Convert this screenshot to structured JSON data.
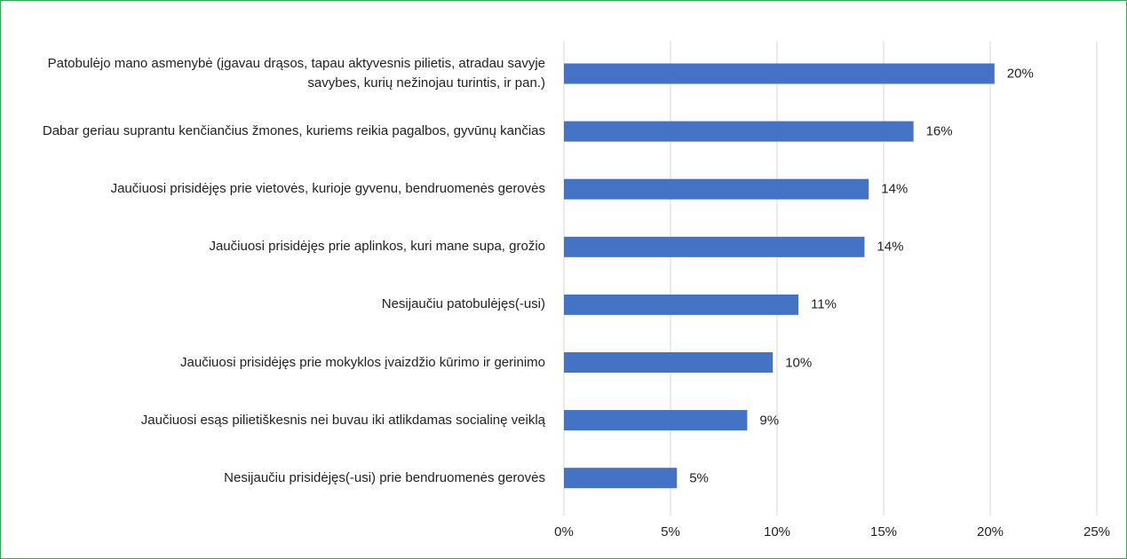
{
  "chart_data": {
    "type": "bar",
    "orientation": "horizontal",
    "categories": [
      "Patobulėjo mano asmenybė (įgavau drąsos, tapau aktyvesnis pilietis, atradau savyje savybes, kurių nežinojau turintis, ir pan.)",
      "Dabar geriau suprantu kenčiančius žmones, kuriems reikia pagalbos, gyvūnų kančias",
      "Jaučiuosi prisidėjęs prie vietovės, kurioje gyvenu, bendruomenės gerovės",
      "Jaučiuosi prisidėjęs prie aplinkos, kuri mane supa, grožio",
      "Nesijaučiu patobulėjęs(-usi)",
      "Jaučiuosi prisidėjęs prie mokyklos įvaizdžio kūrimo ir gerinimo",
      "Jaučiuosi esąs pilietiškesnis nei buvau iki atlikdamas socialinę veiklą",
      "Nesijaučiu prisidėjęs(-usi) prie bendruomenės gerovės"
    ],
    "values": [
      20.2,
      16.4,
      14.3,
      14.1,
      11.0,
      9.8,
      8.6,
      5.3
    ],
    "value_labels": [
      "20%",
      "16%",
      "14%",
      "14%",
      "11%",
      "10%",
      "9%",
      "5%"
    ],
    "color": "#4472c4",
    "xlim": [
      0,
      25
    ],
    "xticks": [
      {
        "value": 0,
        "label": "0%"
      },
      {
        "value": 5,
        "label": "5%"
      },
      {
        "value": 10,
        "label": "10%"
      },
      {
        "value": 15,
        "label": "15%"
      },
      {
        "value": 20,
        "label": "20%"
      },
      {
        "value": 25,
        "label": "25%"
      }
    ],
    "grid": true
  }
}
